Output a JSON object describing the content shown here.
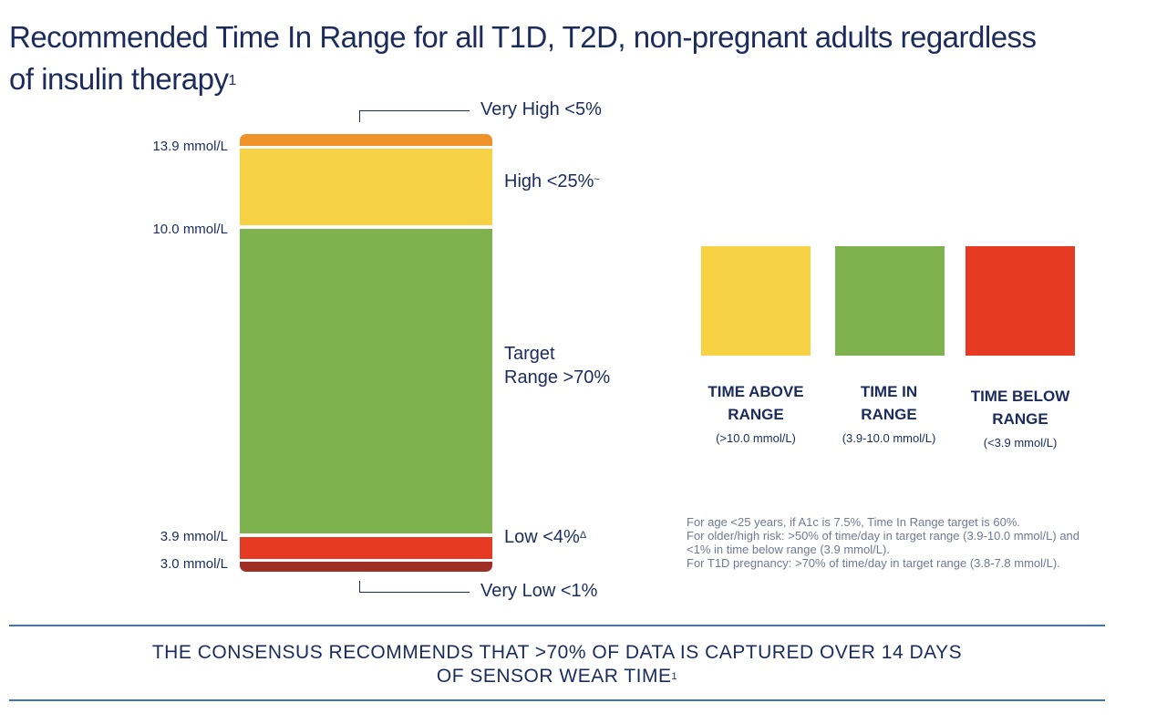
{
  "title": {
    "line1": "Recommended Time In Range for all T1D, T2D, non-pregnant adults regardless",
    "line2": "of insulin therapy",
    "superscript": "1"
  },
  "chart_data": {
    "type": "stacked-bar",
    "thresholds": [
      "13.9 mmol/L",
      "10.0 mmol/L",
      "3.9 mmol/L",
      "3.0 mmol/L"
    ],
    "segments": [
      {
        "name": "Very High",
        "label": "Very High <5%",
        "target": "<5%",
        "color": "#f0922a"
      },
      {
        "name": "High",
        "label": "High <25%",
        "mark": "~",
        "target": "<25%",
        "color": "#f6d244"
      },
      {
        "name": "Target Range",
        "label_line1": "Target",
        "label_line2": "Range >70%",
        "target": ">70%",
        "color": "#7db24e"
      },
      {
        "name": "Low",
        "label": "Low <4%",
        "mark": "Δ",
        "target": "<4%",
        "color": "#e63a24"
      },
      {
        "name": "Very Low",
        "label": "Very Low <1%",
        "target": "<1%",
        "color": "#9e2e23"
      }
    ]
  },
  "legend": [
    {
      "line1": "TIME ABOVE",
      "line2": "RANGE",
      "sub": "(>10.0 mmol/L)",
      "color": "#f6d244"
    },
    {
      "line1": "TIME IN",
      "line2": "RANGE",
      "sub": "(3.9-10.0 mmol/L)",
      "color": "#7db24e"
    },
    {
      "line1": "TIME BELOW",
      "line2": "RANGE",
      "sub": "(<3.9 mmol/L)",
      "color": "#e63a24"
    }
  ],
  "notes": [
    "For age <25 years, if A1c is 7.5%, Time In Range target is 60%.",
    "For older/high risk: >50% of time/day in target range (3.9-10.0 mmol/L) and\n<1% in time below range (3.9 mmol/L).",
    "For T1D pregnancy: >70% of time/day in target range (3.8-7.8 mmol/L)."
  ],
  "banner": {
    "line1": "THE CONSENSUS RECOMMENDS THAT >70% OF DATA IS CAPTURED OVER 14 DAYS",
    "line2": "OF SENSOR WEAR TIME",
    "superscript": "1"
  },
  "colors": {
    "accent_rule": "#3a75c4",
    "text": "#1b2c5c",
    "note_text": "#6f7a93"
  }
}
